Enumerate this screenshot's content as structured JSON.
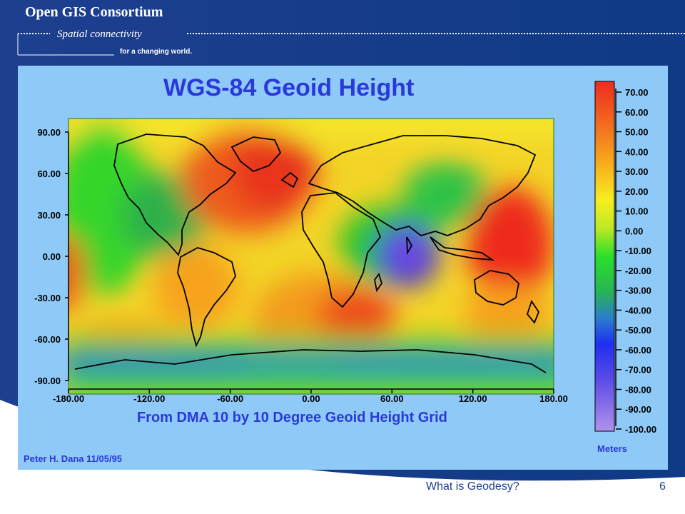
{
  "header": {
    "brand": "Open GIS Consortium",
    "tagline": "Spatial connectivity",
    "tagline2": "for a changing world."
  },
  "map": {
    "title": "WGS-84 Geoid Height",
    "subtitle": "From DMA 10 by 10 Degree Geoid Height Grid",
    "credit": "Peter H. Dana 11/05/95",
    "lat_ticks": [
      "90.00",
      "60.00",
      "30.00",
      "0.00",
      "-30.00",
      "-60.00",
      "-90.00"
    ],
    "lon_ticks": [
      "-180.00",
      "-120.00",
      "-60.00",
      "0.00",
      "60.00",
      "120.00",
      "180.00"
    ],
    "colorbar": {
      "labels": [
        "70.00",
        "60.00",
        "50.00",
        "40.00",
        "30.00",
        "20.00",
        "10.00",
        "0.00",
        "-10.00",
        "-20.00",
        "-30.00",
        "-40.00",
        "-50.00",
        "-60.00",
        "-70.00",
        "-80.00",
        "-90.00",
        "-100.00"
      ],
      "unit": "Meters",
      "range": [
        -100,
        70
      ]
    },
    "colors": {
      "frame_bg": "#8ec9f7",
      "high": "#e8351f",
      "zero": "#f5ef27",
      "low": "#3a2dd8",
      "border": "#000000"
    }
  },
  "footer": {
    "title": "What is Geodesy?",
    "page": "6"
  }
}
